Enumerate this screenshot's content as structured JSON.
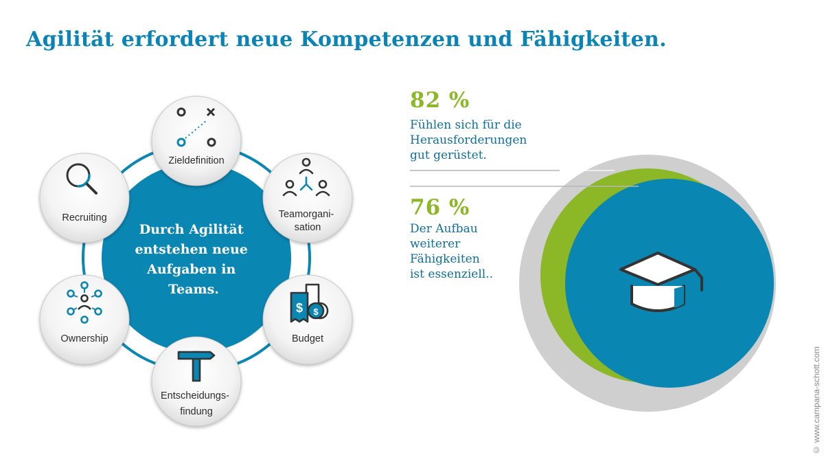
{
  "title": "Agilität erfordert neue Kompetenzen und Fähigkeiten.",
  "colors": {
    "title": "#0a83b6",
    "blue": "#0a86b3",
    "green": "#8cb827",
    "gray": "#cfcfcf",
    "dark": "#333333"
  },
  "center": {
    "lines": [
      "Durch Agilität",
      "entstehen neue",
      "Aufgaben in",
      "Teams."
    ]
  },
  "nodes": [
    {
      "id": "zieldefinition",
      "icon": "target-path-icon",
      "lines": [
        "Zieldefinition"
      ]
    },
    {
      "id": "teamorganisation",
      "icon": "team-network-icon",
      "lines": [
        "Teamorgani-",
        "sation"
      ]
    },
    {
      "id": "budget",
      "icon": "money-receipt-icon",
      "lines": [
        "Budget"
      ]
    },
    {
      "id": "entscheidungsfindung",
      "icon": "signpost-icon",
      "lines": [
        "Entscheidungs-",
        "findung"
      ]
    },
    {
      "id": "ownership",
      "icon": "ownership-icon",
      "lines": [
        "Ownership"
      ]
    },
    {
      "id": "recruiting",
      "icon": "magnifier-icon",
      "lines": [
        "Recruiting"
      ]
    }
  ],
  "stats": [
    {
      "value": "82 %",
      "text": "Fühlen sich für die\nHerausforderungen\ngut gerüstet."
    },
    {
      "value": "76 %",
      "text": "Der Aufbau\nweiterer\nFähigkeiten\nist essenziell.."
    }
  ],
  "graphic": {
    "icon": "graduation-cap-icon"
  },
  "copyright": "© www.campana-schott.com"
}
